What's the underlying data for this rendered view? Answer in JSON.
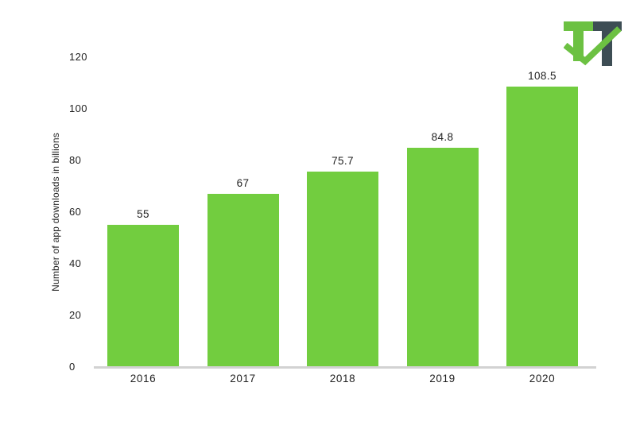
{
  "page": {
    "background": "#ffffff"
  },
  "logo": {
    "name": "two-letter T T logo with checkmark",
    "letters": "TT",
    "green": "#6cc142",
    "dark": "#3d4d54"
  },
  "colors": {
    "bar": "#72cd3f",
    "axis_line": "#d2d2d2",
    "text": "#1f1f1f"
  },
  "chart_data": {
    "type": "bar",
    "title": "",
    "categories": [
      "2016",
      "2017",
      "2018",
      "2019",
      "2020"
    ],
    "values": [
      55,
      67,
      75.7,
      84.8,
      108.5
    ],
    "value_labels": [
      "55",
      "67",
      "75.7",
      "84.8",
      "108.5"
    ],
    "xlabel": "",
    "ylabel": "Number of app downloads in billions",
    "yticks": [
      0,
      20,
      40,
      60,
      80,
      100,
      120
    ],
    "ylim": [
      0,
      120
    ],
    "grid": false,
    "legend": "none"
  }
}
